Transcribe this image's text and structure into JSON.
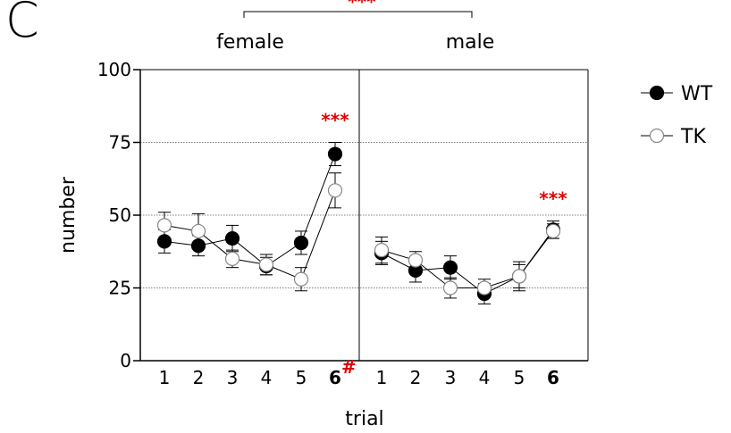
{
  "panel_label": "C",
  "chart_data": {
    "type": "line",
    "ylabel": "number",
    "xlabel": "trial",
    "ylim": [
      0,
      100
    ],
    "yticks": [
      0,
      25,
      50,
      75,
      100
    ],
    "gridlines": [
      25,
      50,
      75
    ],
    "groups": [
      {
        "name": "female",
        "categories": [
          "1",
          "2",
          "3",
          "4",
          "5",
          "6"
        ],
        "bold_category": "6",
        "superscript": "#",
        "series": [
          {
            "name": "WT",
            "values": [
              41,
              39.5,
              42,
              32.5,
              40.5,
              71
            ],
            "errors": [
              4,
              3.5,
              4.5,
              3,
              4,
              4
            ]
          },
          {
            "name": "TK",
            "values": [
              46.5,
              44.5,
              35,
              33,
              28,
              58.5
            ],
            "errors": [
              4.5,
              6,
              3,
              3.5,
              4,
              6
            ]
          }
        ],
        "significance": {
          "label": "***",
          "category": "6"
        }
      },
      {
        "name": "male",
        "categories": [
          "1",
          "2",
          "3",
          "4",
          "5",
          "6"
        ],
        "bold_category": "6",
        "series": [
          {
            "name": "WT",
            "values": [
              37,
              31,
              32,
              23,
              29,
              45
            ],
            "errors": [
              4,
              4,
              4,
              3.5,
              4,
              3
            ]
          },
          {
            "name": "TK",
            "values": [
              38,
              34.5,
              25,
              25,
              29,
              44.5
            ],
            "errors": [
              4.5,
              3,
              3.5,
              3,
              5,
              2.5
            ]
          }
        ],
        "significance": {
          "label": "***",
          "category": "6"
        }
      }
    ],
    "bracket_label": "***",
    "legend": [
      {
        "name": "WT",
        "marker": "filled-circle",
        "color": "#000000"
      },
      {
        "name": "TK",
        "marker": "open-circle",
        "color": "#ffffff"
      }
    ],
    "legend_position": "top-right"
  }
}
